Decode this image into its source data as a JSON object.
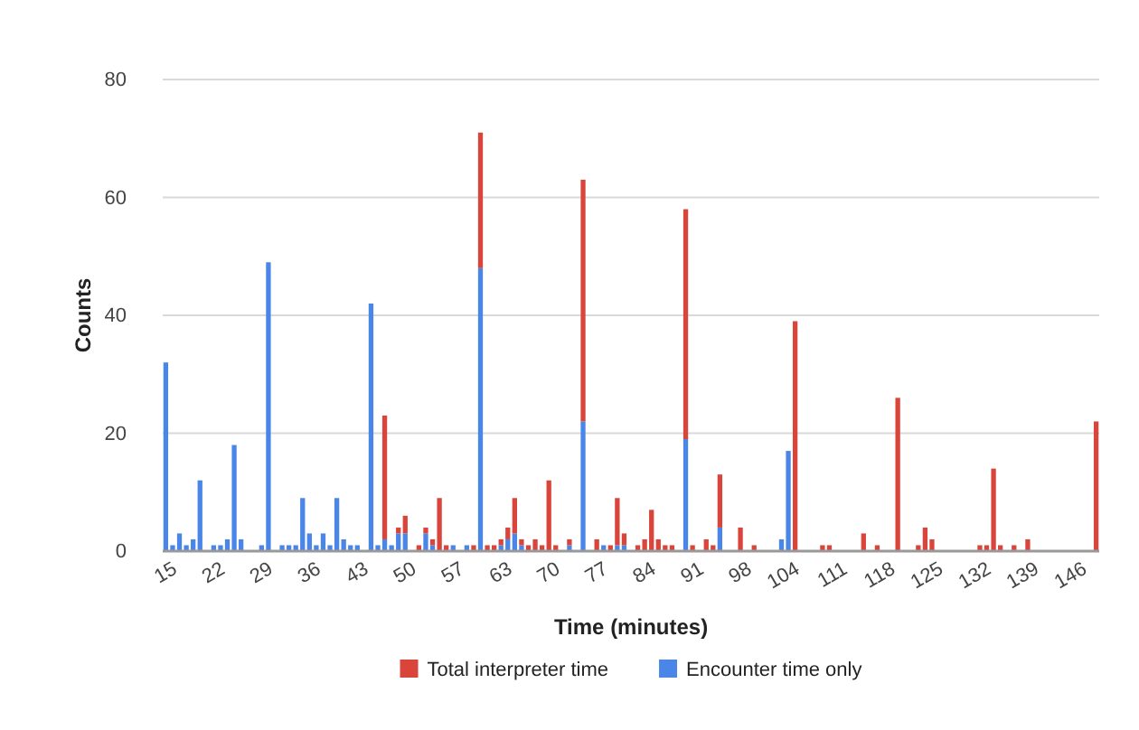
{
  "chart_data": {
    "type": "bar",
    "stacked": true,
    "xlabel": "Time (minutes)",
    "ylabel": "Counts",
    "categories": [
      "15",
      null,
      null,
      null,
      null,
      null,
      null,
      "22",
      null,
      null,
      null,
      null,
      null,
      null,
      "29",
      null,
      null,
      null,
      null,
      null,
      null,
      "36",
      null,
      null,
      null,
      null,
      null,
      null,
      "43",
      null,
      null,
      null,
      null,
      null,
      null,
      "50",
      null,
      null,
      null,
      null,
      null,
      null,
      "57",
      null,
      null,
      null,
      null,
      null,
      null,
      "63",
      null,
      null,
      null,
      null,
      null,
      null,
      "70",
      null,
      null,
      null,
      null,
      null,
      null,
      "77",
      null,
      null,
      null,
      null,
      null,
      null,
      "84",
      null,
      null,
      null,
      null,
      null,
      null,
      "91",
      null,
      null,
      null,
      null,
      null,
      null,
      "98",
      null,
      null,
      null,
      null,
      null,
      null,
      "104",
      null,
      null,
      null,
      null,
      null,
      null,
      "111",
      null,
      null,
      null,
      null,
      null,
      null,
      "118",
      null,
      null,
      null,
      null,
      null,
      null,
      "125",
      null,
      null,
      null,
      null,
      null,
      null,
      "132",
      null,
      null,
      null,
      null,
      null,
      null,
      "139",
      null,
      null,
      null,
      null,
      null,
      null,
      "146",
      null,
      null,
      null
    ],
    "ylim": [
      0,
      80
    ],
    "yticks": [
      0,
      20,
      40,
      60,
      80
    ],
    "grid": "y",
    "legend": "bottom",
    "series": [
      {
        "name": "Encounter time only",
        "color": "#4a86e8",
        "values": [
          32,
          1,
          3,
          1,
          2,
          12,
          null,
          1,
          1,
          2,
          18,
          2,
          null,
          null,
          1,
          49,
          null,
          1,
          1,
          1,
          9,
          3,
          1,
          3,
          1,
          9,
          2,
          1,
          1,
          null,
          42,
          1,
          2,
          1,
          3,
          3,
          null,
          null,
          3,
          1,
          null,
          null,
          1,
          null,
          1,
          null,
          48,
          null,
          null,
          1,
          2,
          3,
          1,
          null,
          null,
          null,
          null,
          null,
          null,
          1,
          null,
          22,
          null,
          null,
          1,
          null,
          1,
          1,
          null,
          null,
          null,
          null,
          null,
          null,
          null,
          null,
          19,
          null,
          null,
          null,
          null,
          4,
          null,
          null,
          null,
          null,
          null,
          null,
          null,
          null,
          2,
          17,
          null,
          null,
          null,
          null,
          null,
          null,
          null,
          null,
          null,
          null,
          null,
          null,
          null,
          null,
          null,
          null,
          null,
          null,
          null,
          null,
          null,
          null,
          null,
          null,
          null,
          null,
          null,
          null,
          null,
          null,
          null,
          null,
          null,
          null,
          null,
          null,
          null,
          null,
          null,
          null,
          null,
          null,
          null,
          null,
          null
        ]
      },
      {
        "name": "Total interpreter time",
        "color": "#d9453a",
        "values": [
          null,
          null,
          null,
          null,
          null,
          null,
          null,
          null,
          null,
          null,
          null,
          null,
          null,
          null,
          null,
          null,
          null,
          null,
          null,
          null,
          null,
          null,
          null,
          null,
          null,
          null,
          null,
          null,
          null,
          null,
          null,
          null,
          21,
          null,
          1,
          3,
          null,
          1,
          1,
          1,
          9,
          1,
          null,
          null,
          null,
          1,
          23,
          1,
          1,
          1,
          2,
          6,
          1,
          1,
          2,
          1,
          12,
          1,
          null,
          1,
          null,
          41,
          null,
          2,
          null,
          1,
          8,
          2,
          null,
          1,
          2,
          7,
          2,
          1,
          1,
          null,
          39,
          1,
          null,
          2,
          1,
          9,
          null,
          null,
          4,
          null,
          1,
          null,
          null,
          null,
          null,
          null,
          39,
          null,
          null,
          null,
          1,
          1,
          null,
          null,
          null,
          null,
          3,
          null,
          1,
          null,
          null,
          26,
          null,
          null,
          1,
          4,
          2,
          null,
          null,
          null,
          null,
          null,
          null,
          1,
          1,
          14,
          1,
          null,
          1,
          null,
          2,
          null,
          null,
          null,
          null,
          null,
          null,
          null,
          null,
          null,
          22
        ]
      }
    ]
  }
}
